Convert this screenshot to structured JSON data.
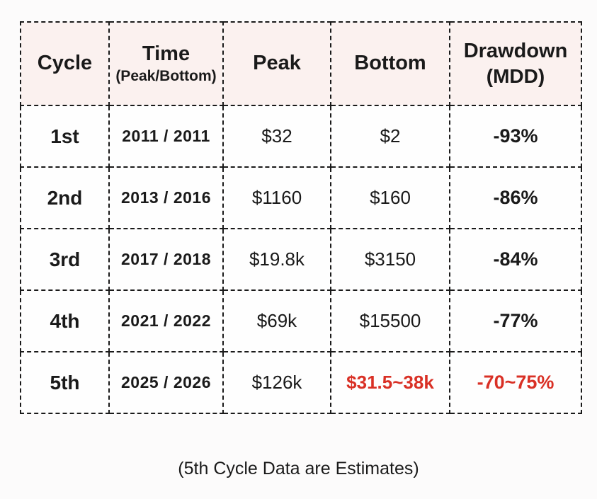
{
  "colors": {
    "text": "#1a1a1a",
    "estimate_red": "#d93025",
    "header_bg": "#fbf1ef",
    "cell_bg": "#fefefe",
    "border": "#1a1a1a",
    "page_bg": "#fcfbfb"
  },
  "chart_data": {
    "type": "table",
    "title": "",
    "columns": [
      {
        "label": "Cycle",
        "sub": ""
      },
      {
        "label": "Time",
        "sub": "(Peak/Bottom)"
      },
      {
        "label": "Peak",
        "sub": ""
      },
      {
        "label": "Bottom",
        "sub": ""
      },
      {
        "label": "Drawdown",
        "sub": "(MDD)"
      }
    ],
    "rows": [
      {
        "cycle": "1st",
        "time": "2011 / 2011",
        "peak": "$32",
        "bottom": "$2",
        "drawdown": "-93%",
        "estimate": false
      },
      {
        "cycle": "2nd",
        "time": "2013 / 2016",
        "peak": "$1160",
        "bottom": "$160",
        "drawdown": "-86%",
        "estimate": false
      },
      {
        "cycle": "3rd",
        "time": "2017 / 2018",
        "peak": "$19.8k",
        "bottom": "$3150",
        "drawdown": "-84%",
        "estimate": false
      },
      {
        "cycle": "4th",
        "time": "2021 / 2022",
        "peak": "$69k",
        "bottom": "$15500",
        "drawdown": "-77%",
        "estimate": false
      },
      {
        "cycle": "5th",
        "time": "2025 / 2026",
        "peak": "$126k",
        "bottom": "$31.5~38k",
        "drawdown": "-70~75%",
        "estimate": true
      }
    ]
  },
  "caption": "(5th Cycle Data are Estimates)"
}
